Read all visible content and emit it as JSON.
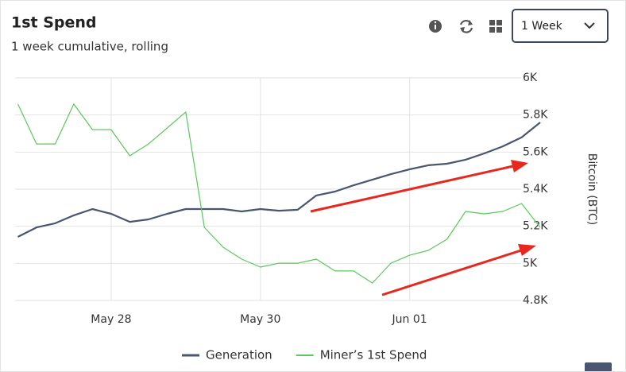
{
  "chart_data": {
    "type": "line",
    "title": "1st Spend",
    "subtitle": "1 week cumulative, rolling",
    "period": "1 Week",
    "y_label": "Bitcoin (BTC)",
    "categories": [
      null,
      null,
      null,
      null,
      null,
      "May 28",
      null,
      null,
      null,
      null,
      null,
      null,
      null,
      "May 30",
      null,
      null,
      null,
      null,
      null,
      null,
      null,
      "Jun 01",
      null,
      null,
      null,
      null,
      null,
      null,
      null
    ],
    "series": [
      {
        "name": "Generation",
        "color": "#4a5670",
        "values": [
          5143,
          5194,
          5216,
          5259,
          5293,
          5267,
          5224,
          5237,
          5267,
          5293,
          5293,
          5293,
          5280,
          5293,
          5284,
          5289,
          5366,
          5387,
          5421,
          5451,
          5481,
          5507,
          5529,
          5537,
          5559,
          5593,
          5631,
          5679,
          5760
        ]
      },
      {
        "name": "Miner’s 1st Spend",
        "color": "#5ac85a",
        "values": [
          5859,
          5644,
          5644,
          5859,
          5721,
          5721,
          5580,
          5644,
          5730,
          5816,
          5194,
          5087,
          5023,
          4980,
          5001,
          5001,
          5023,
          4959,
          4959,
          4894,
          5001,
          5044,
          5070,
          5130,
          5280,
          5267,
          5280,
          5323,
          5194
        ]
      }
    ],
    "ylim": [
      4800,
      6000
    ],
    "yticks": [
      {
        "value": 4800,
        "label": "4.8K"
      },
      {
        "value": 5000,
        "label": "5K"
      },
      {
        "value": 5200,
        "label": "5.2K"
      },
      {
        "value": 5400,
        "label": "5.4K"
      },
      {
        "value": 5600,
        "label": "5.6K"
      },
      {
        "value": 5800,
        "label": "5.8K"
      },
      {
        "value": 6000,
        "label": "6K"
      }
    ],
    "grid": true
  }
}
